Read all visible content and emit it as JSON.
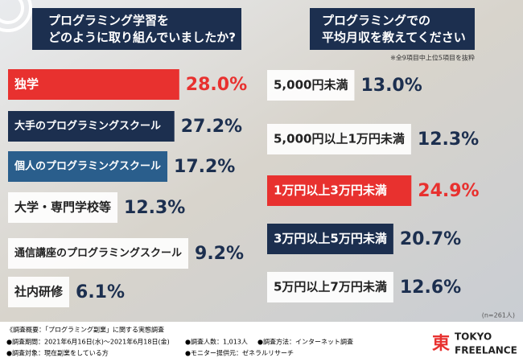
{
  "chart_data": [
    {
      "type": "bar",
      "title_lines": [
        "プログラミング学習を",
        "どのように取り組んでいましたか?"
      ],
      "categories": [
        "独学",
        "大手のプログラミングスクール",
        "個人のプログラミングスクール",
        "大学・専門学校等",
        "通信講座のプログラミングスクール",
        "社内研修"
      ],
      "values": [
        28.0,
        27.2,
        17.2,
        12.3,
        9.2,
        6.1
      ],
      "value_labels": [
        "28.0%",
        "27.2%",
        "17.2%",
        "12.3%",
        "9.2%",
        "6.1%"
      ],
      "colors": [
        "#e8312f",
        "#1c2f4f",
        "#2a5e8c",
        "#ffffff",
        "#ffffff",
        "#ffffff"
      ]
    },
    {
      "type": "bar",
      "title_lines": [
        "プログラミングでの",
        "平均月収を教えてください"
      ],
      "note": "※全9項目中上位5項目を抜粋",
      "categories": [
        "5,000円未満",
        "5,000円以上1万円未満",
        "1万円以上3万円未満",
        "3万円以上5万円未満",
        "5万円以上7万円未満"
      ],
      "values": [
        13.0,
        12.3,
        24.9,
        20.7,
        12.6
      ],
      "value_labels": [
        "13.0%",
        "12.3%",
        "24.9%",
        "20.7%",
        "12.6%"
      ],
      "colors": [
        "#ffffff",
        "#ffffff",
        "#e8312f",
        "#1c2f4f",
        "#ffffff"
      ],
      "sample": "(n=261人)"
    }
  ],
  "footer": {
    "lines": [
      "《調査概要：「プログラミング副業」に関する実態調査",
      "●調査期間：2021年6月16日(水)～2021年6月18日(金)",
      "●調査人数：1,013人",
      "●調査方法：インターネット調査",
      "●調査対象：現在副業をしている方",
      "●モニター提供元：ゼネラルリサーチ"
    ],
    "logo_mark": "東",
    "logo": [
      "TOKYO",
      "FREELANCE"
    ]
  }
}
